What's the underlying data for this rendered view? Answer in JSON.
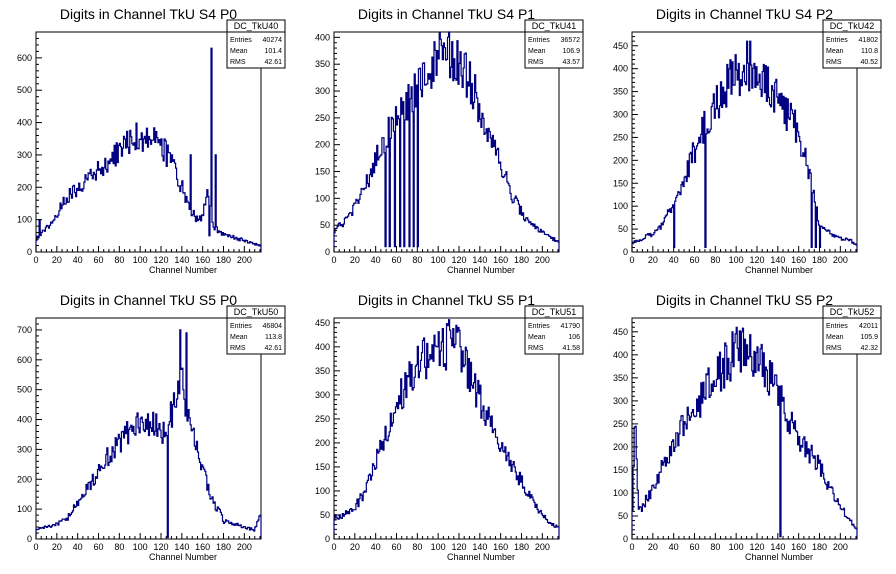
{
  "chart_data": [
    {
      "type": "histogram",
      "title": "Digits in Channel TkU S4 P0",
      "xlabel": "Channel Number",
      "xlim": [
        0,
        216
      ],
      "ylim": [
        0,
        680
      ],
      "xticks": [
        0,
        20,
        40,
        60,
        80,
        100,
        120,
        140,
        160,
        180,
        200
      ],
      "yticks": [
        0,
        100,
        200,
        300,
        400,
        500,
        600
      ],
      "stats": {
        "name": "DC_TkU40",
        "rows": [
          [
            "Entries",
            "40274"
          ],
          [
            "Mean",
            "101.4"
          ],
          [
            "RMS",
            "42.61"
          ]
        ]
      },
      "color": "#000080",
      "profile": [
        [
          0,
          40
        ],
        [
          5,
          55
        ],
        [
          10,
          75
        ],
        [
          20,
          115
        ],
        [
          30,
          170
        ],
        [
          40,
          200
        ],
        [
          50,
          225
        ],
        [
          60,
          250
        ],
        [
          70,
          275
        ],
        [
          80,
          310
        ],
        [
          90,
          350
        ],
        [
          100,
          360
        ],
        [
          110,
          350
        ],
        [
          120,
          340
        ],
        [
          130,
          270
        ],
        [
          140,
          200
        ],
        [
          150,
          120
        ],
        [
          155,
          100
        ],
        [
          160,
          110
        ],
        [
          165,
          180
        ],
        [
          170,
          80
        ],
        [
          180,
          55
        ],
        [
          190,
          45
        ],
        [
          200,
          35
        ],
        [
          210,
          25
        ],
        [
          215,
          20
        ]
      ],
      "spikes": [
        [
          3,
          100
        ],
        [
          130,
          300
        ],
        [
          148,
          300
        ],
        [
          166,
          50
        ],
        [
          168,
          630
        ],
        [
          172,
          300
        ]
      ]
    },
    {
      "type": "histogram",
      "title": "Digits in Channel TkU S4 P1",
      "xlabel": "Channel Number",
      "xlim": [
        0,
        216
      ],
      "ylim": [
        0,
        410
      ],
      "xticks": [
        0,
        20,
        40,
        60,
        80,
        100,
        120,
        140,
        160,
        180,
        200
      ],
      "yticks": [
        0,
        50,
        100,
        150,
        200,
        250,
        300,
        350,
        400
      ],
      "stats": {
        "name": "DC_TkU41",
        "rows": [
          [
            "Entries",
            "36572"
          ],
          [
            "Mean",
            "106.9"
          ],
          [
            "RMS",
            "43.57"
          ]
        ]
      },
      "color": "#000080",
      "profile": [
        [
          0,
          40
        ],
        [
          10,
          55
        ],
        [
          20,
          85
        ],
        [
          30,
          120
        ],
        [
          40,
          170
        ],
        [
          50,
          215
        ],
        [
          60,
          250
        ],
        [
          70,
          280
        ],
        [
          80,
          315
        ],
        [
          90,
          340
        ],
        [
          100,
          360
        ],
        [
          110,
          370
        ],
        [
          120,
          355
        ],
        [
          130,
          320
        ],
        [
          140,
          270
        ],
        [
          150,
          220
        ],
        [
          160,
          160
        ],
        [
          170,
          110
        ],
        [
          180,
          75
        ],
        [
          190,
          50
        ],
        [
          200,
          35
        ],
        [
          210,
          25
        ],
        [
          215,
          20
        ]
      ],
      "spikes": [
        [
          49,
          10
        ],
        [
          53,
          10
        ],
        [
          58,
          10
        ],
        [
          63,
          10
        ],
        [
          67,
          10
        ],
        [
          72,
          10
        ],
        [
          76,
          10
        ],
        [
          80,
          10
        ],
        [
          113,
          392
        ]
      ]
    },
    {
      "type": "histogram",
      "title": "Digits in Channel TkU S4 P2",
      "xlabel": "Channel Number",
      "xlim": [
        0,
        216
      ],
      "ylim": [
        0,
        480
      ],
      "xticks": [
        0,
        20,
        40,
        60,
        80,
        100,
        120,
        140,
        160,
        180,
        200
      ],
      "yticks": [
        0,
        50,
        100,
        150,
        200,
        250,
        300,
        350,
        400,
        450
      ],
      "stats": {
        "name": "DC_TkU42",
        "rows": [
          [
            "Entries",
            "41802"
          ],
          [
            "Mean",
            "110.8"
          ],
          [
            "RMS",
            "40.52"
          ]
        ]
      },
      "color": "#000080",
      "profile": [
        [
          0,
          20
        ],
        [
          10,
          30
        ],
        [
          20,
          40
        ],
        [
          30,
          60
        ],
        [
          40,
          110
        ],
        [
          50,
          160
        ],
        [
          60,
          220
        ],
        [
          70,
          280
        ],
        [
          80,
          320
        ],
        [
          90,
          360
        ],
        [
          100,
          385
        ],
        [
          110,
          400
        ],
        [
          120,
          385
        ],
        [
          130,
          360
        ],
        [
          140,
          330
        ],
        [
          150,
          300
        ],
        [
          160,
          260
        ],
        [
          170,
          170
        ],
        [
          175,
          120
        ],
        [
          180,
          60
        ],
        [
          190,
          40
        ],
        [
          200,
          30
        ],
        [
          210,
          25
        ],
        [
          215,
          15
        ]
      ],
      "spikes": [
        [
          40,
          10
        ],
        [
          70,
          10
        ],
        [
          110,
          460
        ],
        [
          113,
          460
        ],
        [
          172,
          10
        ],
        [
          176,
          10
        ],
        [
          180,
          10
        ]
      ]
    },
    {
      "type": "histogram",
      "title": "Digits in Channel TkU S5 P0",
      "xlabel": "Channel Number",
      "xlim": [
        0,
        216
      ],
      "ylim": [
        0,
        740
      ],
      "xticks": [
        0,
        20,
        40,
        60,
        80,
        100,
        120,
        140,
        160,
        180,
        200
      ],
      "yticks": [
        0,
        100,
        200,
        300,
        400,
        500,
        600,
        700
      ],
      "stats": {
        "name": "DC_TkU50",
        "rows": [
          [
            "Entries",
            "46804"
          ],
          [
            "Mean",
            "113.8"
          ],
          [
            "RMS",
            "42.61"
          ]
        ]
      },
      "color": "#000080",
      "profile": [
        [
          0,
          35
        ],
        [
          10,
          40
        ],
        [
          20,
          50
        ],
        [
          30,
          70
        ],
        [
          40,
          120
        ],
        [
          50,
          170
        ],
        [
          60,
          230
        ],
        [
          70,
          280
        ],
        [
          80,
          320
        ],
        [
          90,
          360
        ],
        [
          100,
          380
        ],
        [
          110,
          390
        ],
        [
          120,
          380
        ],
        [
          125,
          330
        ],
        [
          130,
          420
        ],
        [
          135,
          500
        ],
        [
          140,
          560
        ],
        [
          145,
          400
        ],
        [
          150,
          380
        ],
        [
          155,
          300
        ],
        [
          160,
          250
        ],
        [
          165,
          170
        ],
        [
          170,
          120
        ],
        [
          175,
          100
        ],
        [
          180,
          60
        ],
        [
          190,
          50
        ],
        [
          200,
          40
        ],
        [
          210,
          30
        ],
        [
          215,
          90
        ]
      ],
      "spikes": [
        [
          126,
          5
        ],
        [
          138,
          700
        ],
        [
          144,
          690
        ]
      ]
    },
    {
      "type": "histogram",
      "title": "Digits in Channel TkU S5 P1",
      "xlabel": "Channel Number",
      "xlim": [
        0,
        216
      ],
      "ylim": [
        0,
        460
      ],
      "xticks": [
        0,
        20,
        40,
        60,
        80,
        100,
        120,
        140,
        160,
        180,
        200
      ],
      "yticks": [
        0,
        50,
        100,
        150,
        200,
        250,
        300,
        350,
        400,
        450
      ],
      "stats": {
        "name": "DC_TkU51",
        "rows": [
          [
            "Entries",
            "41790"
          ],
          [
            "Mean",
            "106"
          ],
          [
            "RMS",
            "41.58"
          ]
        ]
      },
      "color": "#000080",
      "profile": [
        [
          0,
          45
        ],
        [
          10,
          50
        ],
        [
          20,
          65
        ],
        [
          30,
          100
        ],
        [
          40,
          160
        ],
        [
          50,
          220
        ],
        [
          60,
          280
        ],
        [
          70,
          320
        ],
        [
          80,
          355
        ],
        [
          90,
          380
        ],
        [
          100,
          395
        ],
        [
          110,
          405
        ],
        [
          120,
          390
        ],
        [
          130,
          350
        ],
        [
          140,
          290
        ],
        [
          150,
          240
        ],
        [
          160,
          190
        ],
        [
          170,
          150
        ],
        [
          180,
          120
        ],
        [
          190,
          80
        ],
        [
          200,
          50
        ],
        [
          210,
          30
        ],
        [
          215,
          25
        ]
      ],
      "spikes": [
        [
          104,
          438
        ],
        [
          114,
          438
        ]
      ]
    },
    {
      "type": "histogram",
      "title": "Digits in Channel TkU S5 P2",
      "xlabel": "Channel Number",
      "xlim": [
        0,
        216
      ],
      "ylim": [
        0,
        480
      ],
      "xticks": [
        0,
        20,
        40,
        60,
        80,
        100,
        120,
        140,
        160,
        180,
        200
      ],
      "yticks": [
        0,
        50,
        100,
        150,
        200,
        250,
        300,
        350,
        400,
        450
      ],
      "stats": {
        "name": "DC_TkU52",
        "rows": [
          [
            "Entries",
            "42011"
          ],
          [
            "Mean",
            "105.9"
          ],
          [
            "RMS",
            "42.32"
          ]
        ]
      },
      "color": "#000080",
      "profile": [
        [
          0,
          30
        ],
        [
          3,
          270
        ],
        [
          6,
          60
        ],
        [
          10,
          70
        ],
        [
          20,
          110
        ],
        [
          30,
          160
        ],
        [
          40,
          210
        ],
        [
          50,
          250
        ],
        [
          60,
          280
        ],
        [
          70,
          320
        ],
        [
          80,
          350
        ],
        [
          90,
          380
        ],
        [
          100,
          410
        ],
        [
          110,
          405
        ],
        [
          120,
          390
        ],
        [
          130,
          360
        ],
        [
          140,
          320
        ],
        [
          150,
          260
        ],
        [
          160,
          220
        ],
        [
          170,
          190
        ],
        [
          180,
          160
        ],
        [
          190,
          110
        ],
        [
          200,
          70
        ],
        [
          210,
          40
        ],
        [
          215,
          20
        ]
      ],
      "spikes": [
        [
          96,
          450
        ],
        [
          105,
          450
        ],
        [
          142,
          5
        ]
      ]
    }
  ]
}
